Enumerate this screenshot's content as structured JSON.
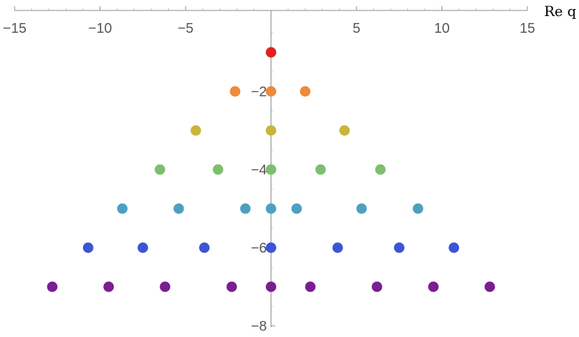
{
  "chart_data": {
    "type": "scatter",
    "title": "",
    "xlabel": "Re q",
    "ylabel": "",
    "xlim": [
      -15,
      15
    ],
    "ylim": [
      -8,
      0
    ],
    "grid": false,
    "x_ticks": [
      -15,
      -10,
      -5,
      5,
      10,
      15
    ],
    "y_ticks": [
      -2,
      -4,
      -6,
      -8
    ],
    "x_tick_labels": [
      "−15",
      "−10",
      "−5",
      "5",
      "10",
      "15"
    ],
    "y_tick_labels": [
      "−2",
      "−4",
      "−6",
      "−8"
    ],
    "series": [
      {
        "color": "#e02020",
        "points": [
          [
            0,
            -1
          ]
        ]
      },
      {
        "color": "#ee8a3a",
        "points": [
          [
            -2.1,
            -2
          ],
          [
            0,
            -2
          ],
          [
            2.0,
            -2
          ]
        ]
      },
      {
        "color": "#c9b538",
        "points": [
          [
            -4.4,
            -3
          ],
          [
            0,
            -3
          ],
          [
            4.3,
            -3
          ]
        ]
      },
      {
        "color": "#7cbf6e",
        "points": [
          [
            -6.5,
            -4
          ],
          [
            -3.1,
            -4
          ],
          [
            0,
            -4
          ],
          [
            2.9,
            -4
          ],
          [
            6.4,
            -4
          ]
        ]
      },
      {
        "color": "#4ea0c0",
        "points": [
          [
            -8.7,
            -5
          ],
          [
            -5.4,
            -5
          ],
          [
            -1.5,
            -5
          ],
          [
            0,
            -5
          ],
          [
            1.5,
            -5
          ],
          [
            5.3,
            -5
          ],
          [
            8.6,
            -5
          ]
        ]
      },
      {
        "color": "#3b55d6",
        "points": [
          [
            -10.7,
            -6
          ],
          [
            -7.5,
            -6
          ],
          [
            -3.9,
            -6
          ],
          [
            0,
            -6
          ],
          [
            3.9,
            -6
          ],
          [
            7.5,
            -6
          ],
          [
            10.7,
            -6
          ]
        ]
      },
      {
        "color": "#7a1e90",
        "points": [
          [
            -12.8,
            -7
          ],
          [
            -9.5,
            -7
          ],
          [
            -6.2,
            -7
          ],
          [
            -2.3,
            -7
          ],
          [
            0,
            -7
          ],
          [
            2.3,
            -7
          ],
          [
            6.2,
            -7
          ],
          [
            9.5,
            -7
          ],
          [
            12.8,
            -7
          ]
        ]
      }
    ]
  }
}
